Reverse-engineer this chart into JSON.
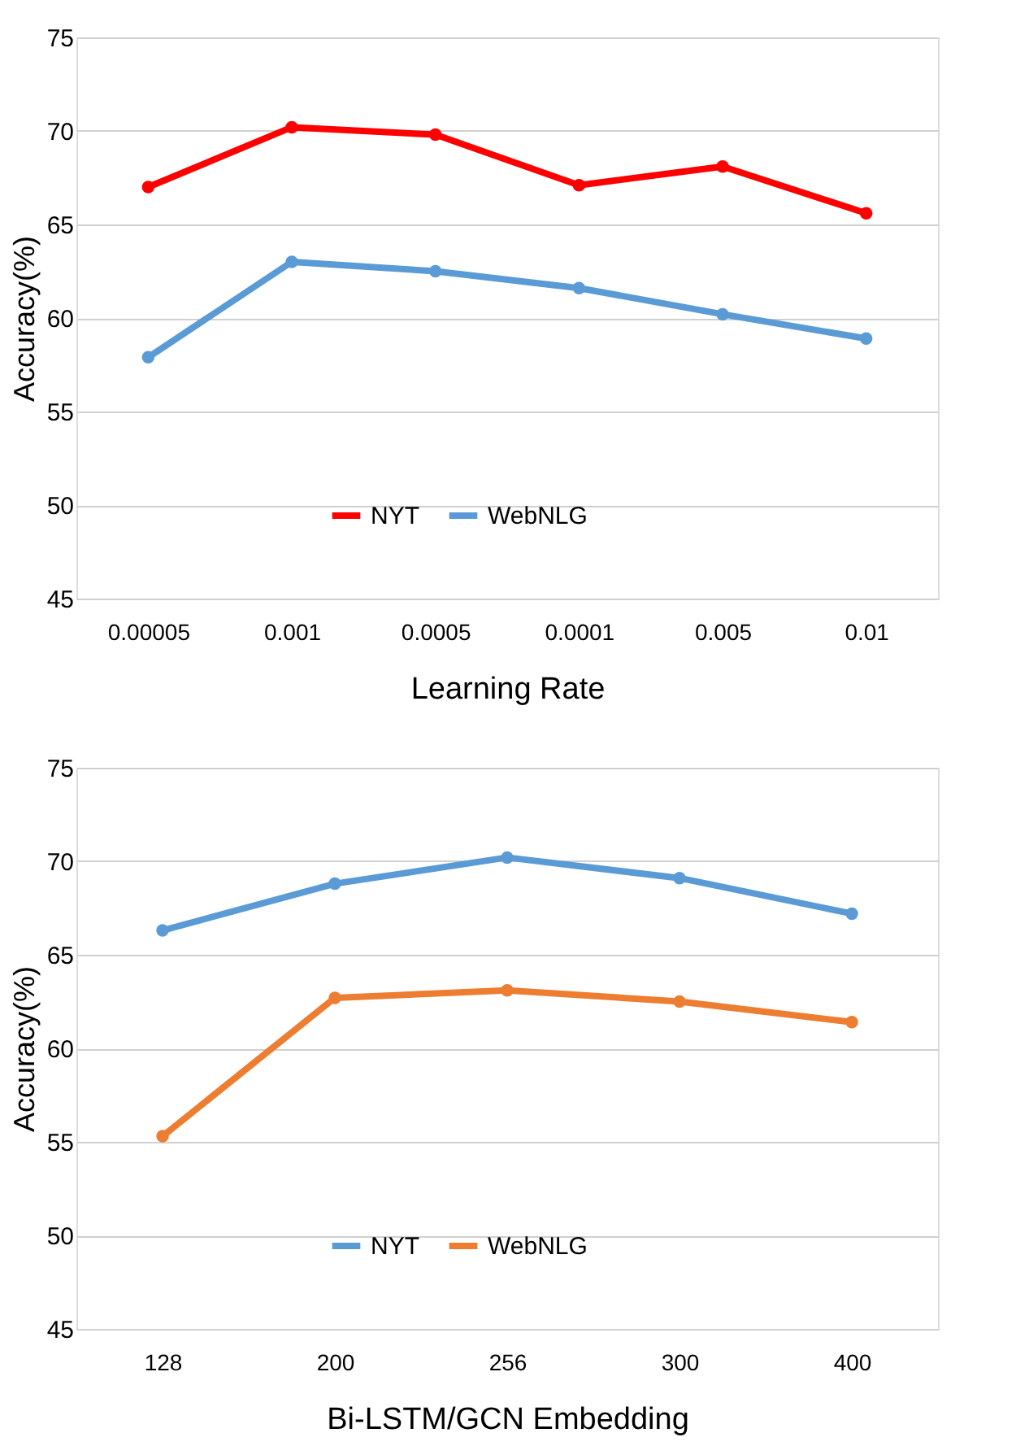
{
  "chart_data": [
    {
      "type": "line",
      "xlabel": "Learning Rate",
      "ylabel": "Accuracy(%)",
      "categories": [
        "0.00005",
        "0.001",
        "0.0005",
        "0.0001",
        "0.005",
        "0.01"
      ],
      "series": [
        {
          "name": "NYT",
          "color": "#ff0000",
          "values": [
            67.0,
            70.2,
            69.8,
            67.1,
            68.1,
            65.6
          ]
        },
        {
          "name": "WebNLG",
          "color": "#5b9bd5",
          "values": [
            57.9,
            63.0,
            62.5,
            61.6,
            60.2,
            58.9
          ]
        }
      ],
      "ylim": [
        45,
        75
      ],
      "yticks": [
        45,
        50,
        55,
        60,
        65,
        70,
        75
      ],
      "grid": "y",
      "legend": "bottom",
      "marker": "circle",
      "line_style": "solid"
    },
    {
      "type": "line",
      "xlabel": "Bi-LSTM/GCN Embedding",
      "ylabel": "Accuracy(%)",
      "categories": [
        "128",
        "200",
        "256",
        "300",
        "400"
      ],
      "series": [
        {
          "name": "NYT",
          "color": "#5b9bd5",
          "values": [
            66.3,
            68.8,
            70.2,
            69.1,
            67.2
          ]
        },
        {
          "name": "WebNLG",
          "color": "#ed7d31",
          "values": [
            55.3,
            62.7,
            63.1,
            62.5,
            61.4
          ]
        }
      ],
      "ylim": [
        45,
        75
      ],
      "yticks": [
        45,
        50,
        55,
        60,
        65,
        70,
        75
      ],
      "grid": "y",
      "legend": "bottom",
      "marker": "circle",
      "line_style": "solid"
    }
  ]
}
